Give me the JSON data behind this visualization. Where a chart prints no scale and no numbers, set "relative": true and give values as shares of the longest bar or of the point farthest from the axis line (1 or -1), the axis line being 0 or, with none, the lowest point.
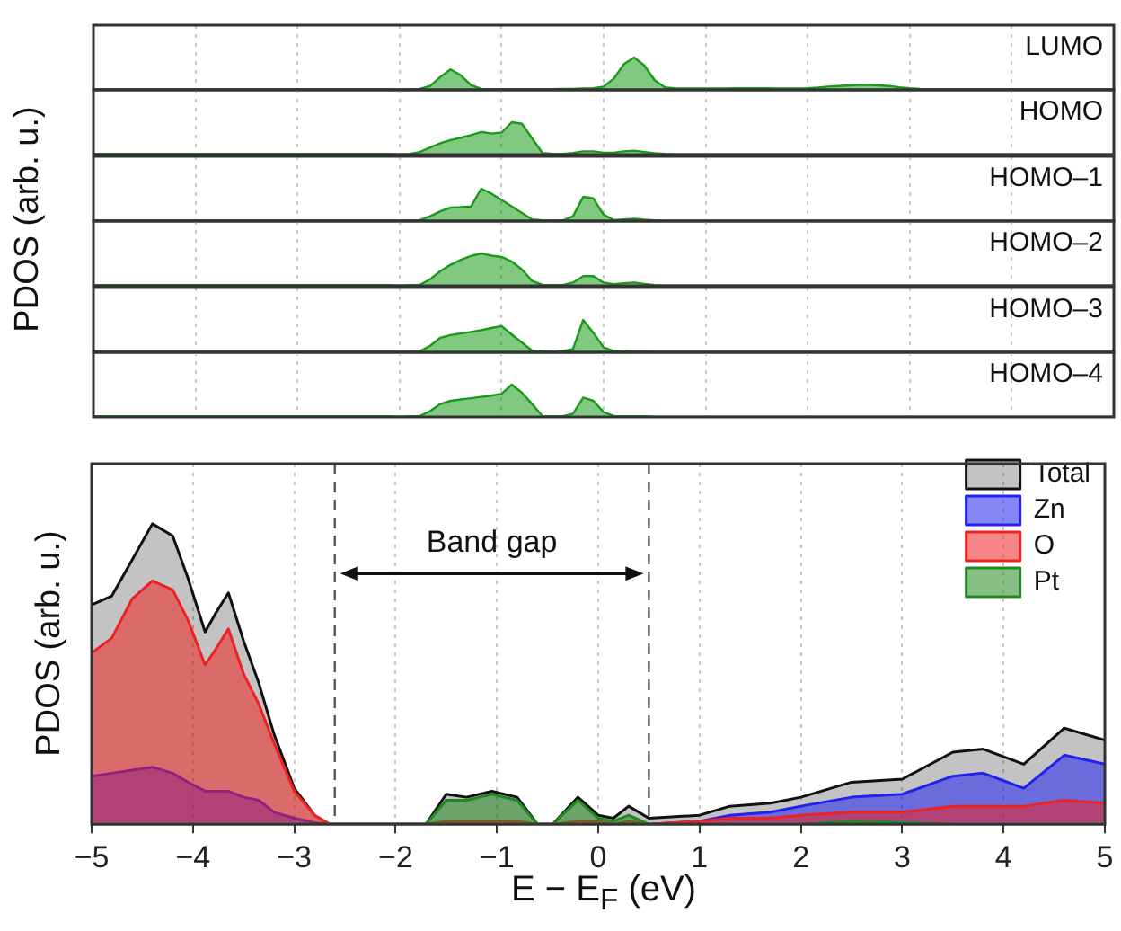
{
  "chart_data": [
    {
      "type": "area",
      "relative": true,
      "ylabel": "PDOS (arb. u.)",
      "categories": [
        null,
        null,
        null,
        null,
        null,
        null,
        null,
        null,
        null,
        null,
        null,
        null,
        null,
        null,
        null,
        null,
        null,
        null,
        null,
        null,
        null,
        null,
        null,
        null,
        null,
        null,
        null,
        null,
        null,
        null,
        null,
        null,
        null,
        null,
        null,
        null,
        null,
        null,
        null,
        null,
        null,
        null,
        null,
        null,
        null,
        null,
        null,
        null,
        null,
        null,
        null,
        null,
        null,
        null,
        null,
        null,
        null,
        null,
        null,
        null,
        null,
        null,
        null,
        null,
        null,
        null,
        null,
        null,
        null,
        null,
        null,
        null,
        null,
        null,
        null,
        null,
        null,
        null,
        null,
        null,
        null,
        null,
        null,
        null,
        null,
        null,
        null,
        null,
        null,
        null,
        null,
        null,
        null,
        null,
        null,
        null,
        null,
        null,
        null,
        null,
        null
      ],
      "grid": "x",
      "tick_labels": false,
      "series": [
        {
          "name": "LUMO",
          "color": "#1a9a1a",
          "values": [
            0.02,
            0.02,
            0.02,
            0.02,
            0.02,
            0.02,
            0.02,
            0.02,
            0.02,
            0.02,
            0.02,
            0.02,
            0.02,
            0.02,
            0.02,
            0.02,
            0.02,
            0.02,
            0.02,
            0.02,
            0.02,
            0.02,
            0.02,
            0.02,
            0.02,
            0.02,
            0.02,
            0.02,
            0.02,
            0.02,
            0.01,
            0.02,
            0.03,
            0.12,
            0.4,
            0.63,
            0.45,
            0.15,
            0.03,
            0.02,
            0.02,
            0.02,
            0.02,
            0.02,
            0.02,
            0.02,
            0.03,
            0.03,
            0.04,
            0.05,
            0.1,
            0.35,
            0.8,
            1,
            0.75,
            0.3,
            0.08,
            0.04,
            0.04,
            0.04,
            0.04,
            0.04,
            0.04,
            0.05,
            0.05,
            0.05,
            0.05,
            0.04,
            0.04,
            0.04,
            0.05,
            0.07,
            0.1,
            0.12,
            0.14,
            0.15,
            0.15,
            0.14,
            0.12,
            0.08,
            0.05,
            0.03,
            0.02,
            0.02,
            0.02,
            0.02,
            0.02,
            0.02,
            0.02,
            0.02,
            0.02,
            0.02,
            0.02,
            0.02,
            0.02,
            0.02,
            0.02,
            0.02,
            0.02,
            0.02,
            0.02
          ]
        }
      ]
    },
    {
      "type": "area",
      "relative": true,
      "categories": [
        null,
        null,
        null,
        null,
        null,
        null,
        null,
        null,
        null,
        null,
        null,
        null,
        null,
        null,
        null,
        null,
        null,
        null,
        null,
        null,
        null,
        null,
        null,
        null,
        null,
        null,
        null,
        null,
        null,
        null,
        null,
        null,
        null,
        null,
        null,
        null,
        null,
        null,
        null,
        null,
        null,
        null,
        null,
        null,
        null,
        null,
        null,
        null,
        null,
        null,
        null,
        null,
        null,
        null,
        null,
        null,
        null,
        null,
        null,
        null,
        null,
        null,
        null,
        null,
        null,
        null,
        null,
        null,
        null,
        null,
        null,
        null,
        null,
        null,
        null,
        null,
        null,
        null,
        null,
        null,
        null,
        null,
        null,
        null,
        null,
        null,
        null,
        null,
        null,
        null,
        null,
        null,
        null,
        null,
        null,
        null,
        null,
        null,
        null,
        null,
        null
      ],
      "grid": "x",
      "tick_labels": false,
      "series": [
        {
          "name": "HOMO",
          "color": "#1a9a1a",
          "values": [
            0.02,
            0.02,
            0.02,
            0.02,
            0.02,
            0.02,
            0.02,
            0.02,
            0.02,
            0.02,
            0.02,
            0.02,
            0.02,
            0.02,
            0.02,
            0.02,
            0.02,
            0.02,
            0.02,
            0.02,
            0.02,
            0.02,
            0.02,
            0.02,
            0.02,
            0.02,
            0.02,
            0.02,
            0.02,
            0.02,
            0.01,
            0.02,
            0.08,
            0.22,
            0.35,
            0.45,
            0.52,
            0.6,
            0.7,
            0.65,
            0.68,
            1,
            0.95,
            0.5,
            0.05,
            0.02,
            0.02,
            0.05,
            0.1,
            0.1,
            0.06,
            0.06,
            0.1,
            0.12,
            0.08,
            0.04,
            0.02,
            0.01,
            0.01,
            0.01,
            0.01,
            0.01,
            0.01,
            0.01,
            0.01,
            0.01,
            0.01,
            0.01,
            0.01,
            0.01,
            0.01,
            0.01,
            0.01,
            0.01,
            0.01,
            0.01,
            0.01,
            0.01,
            0.01,
            0.01,
            0.01,
            0.01,
            0.01,
            0.01,
            0.01,
            0.01,
            0.01,
            0.01,
            0.01,
            0.01,
            0.01,
            0.01,
            0.01,
            0.01,
            0.01,
            0.01,
            0.01,
            0.01,
            0.01,
            0.01,
            0.01
          ]
        }
      ]
    },
    {
      "type": "area",
      "relative": true,
      "categories": [
        null,
        null,
        null,
        null,
        null,
        null,
        null,
        null,
        null,
        null,
        null,
        null,
        null,
        null,
        null,
        null,
        null,
        null,
        null,
        null,
        null,
        null,
        null,
        null,
        null,
        null,
        null,
        null,
        null,
        null,
        null,
        null,
        null,
        null,
        null,
        null,
        null,
        null,
        null,
        null,
        null,
        null,
        null,
        null,
        null,
        null,
        null,
        null,
        null,
        null,
        null,
        null,
        null,
        null,
        null,
        null,
        null,
        null,
        null,
        null,
        null,
        null,
        null,
        null,
        null,
        null,
        null,
        null,
        null,
        null,
        null,
        null,
        null,
        null,
        null,
        null,
        null,
        null,
        null,
        null,
        null,
        null,
        null,
        null,
        null,
        null,
        null,
        null,
        null,
        null,
        null,
        null,
        null,
        null,
        null,
        null,
        null,
        null,
        null,
        null,
        null
      ],
      "grid": "x",
      "tick_labels": false,
      "series": [
        {
          "name": "HOMO–1",
          "color": "#1a9a1a",
          "values": [
            0.02,
            0.02,
            0.02,
            0.02,
            0.02,
            0.02,
            0.02,
            0.02,
            0.02,
            0.02,
            0.02,
            0.02,
            0.02,
            0.02,
            0.02,
            0.02,
            0.02,
            0.02,
            0.02,
            0.02,
            0.02,
            0.02,
            0.02,
            0.02,
            0.02,
            0.02,
            0.02,
            0.02,
            0.02,
            0.02,
            0.01,
            0.02,
            0.03,
            0.15,
            0.3,
            0.42,
            0.43,
            0.45,
            1,
            0.85,
            0.65,
            0.45,
            0.25,
            0.05,
            0.02,
            0.01,
            0.02,
            0.15,
            0.75,
            0.7,
            0.2,
            0.03,
            0.05,
            0.07,
            0.04,
            0.02,
            0.01,
            0.01,
            0.01,
            0.01,
            0.01,
            0.01,
            0.01,
            0.01,
            0.01,
            0.01,
            0.01,
            0.01,
            0.01,
            0.01,
            0.01,
            0.01,
            0.01,
            0.01,
            0.01,
            0.01,
            0.01,
            0.01,
            0.01,
            0.01,
            0.01,
            0.01,
            0.01,
            0.01,
            0.01,
            0.01,
            0.01,
            0.01,
            0.01,
            0.01,
            0.01,
            0.01,
            0.01,
            0.01,
            0.01,
            0.01,
            0.01,
            0.01,
            0.01,
            0.01,
            0.01
          ]
        }
      ]
    },
    {
      "type": "area",
      "relative": true,
      "categories": [
        null,
        null,
        null,
        null,
        null,
        null,
        null,
        null,
        null,
        null,
        null,
        null,
        null,
        null,
        null,
        null,
        null,
        null,
        null,
        null,
        null,
        null,
        null,
        null,
        null,
        null,
        null,
        null,
        null,
        null,
        null,
        null,
        null,
        null,
        null,
        null,
        null,
        null,
        null,
        null,
        null,
        null,
        null,
        null,
        null,
        null,
        null,
        null,
        null,
        null,
        null,
        null,
        null,
        null,
        null,
        null,
        null,
        null,
        null,
        null,
        null,
        null,
        null,
        null,
        null,
        null,
        null,
        null,
        null,
        null,
        null,
        null,
        null,
        null,
        null,
        null,
        null,
        null,
        null,
        null,
        null,
        null,
        null,
        null,
        null,
        null,
        null,
        null,
        null,
        null,
        null,
        null,
        null,
        null,
        null,
        null,
        null,
        null,
        null,
        null,
        null
      ],
      "grid": "x",
      "tick_labels": false,
      "series": [
        {
          "name": "HOMO–2",
          "color": "#1a9a1a",
          "values": [
            0.02,
            0.02,
            0.02,
            0.02,
            0.02,
            0.02,
            0.02,
            0.02,
            0.02,
            0.02,
            0.02,
            0.02,
            0.02,
            0.02,
            0.02,
            0.02,
            0.02,
            0.02,
            0.02,
            0.02,
            0.02,
            0.02,
            0.02,
            0.02,
            0.02,
            0.02,
            0.02,
            0.02,
            0.02,
            0.02,
            0.01,
            0.02,
            0.03,
            0.2,
            0.45,
            0.65,
            0.8,
            0.92,
            1,
            0.93,
            0.89,
            0.75,
            0.5,
            0.15,
            0.03,
            0.02,
            0.02,
            0.1,
            0.3,
            0.3,
            0.1,
            0.05,
            0.08,
            0.1,
            0.06,
            0.02,
            0.01,
            0.01,
            0.01,
            0.01,
            0.01,
            0.01,
            0.01,
            0.01,
            0.01,
            0.01,
            0.01,
            0.01,
            0.01,
            0.01,
            0.01,
            0.01,
            0.01,
            0.01,
            0.01,
            0.01,
            0.01,
            0.01,
            0.01,
            0.01,
            0.01,
            0.01,
            0.01,
            0.01,
            0.01,
            0.01,
            0.01,
            0.01,
            0.01,
            0.01,
            0.01,
            0.01,
            0.01,
            0.01,
            0.01,
            0.01,
            0.01,
            0.01,
            0.01,
            0.01,
            0.01
          ]
        }
      ]
    },
    {
      "type": "area",
      "relative": true,
      "categories": [
        null,
        null,
        null,
        null,
        null,
        null,
        null,
        null,
        null,
        null,
        null,
        null,
        null,
        null,
        null,
        null,
        null,
        null,
        null,
        null,
        null,
        null,
        null,
        null,
        null,
        null,
        null,
        null,
        null,
        null,
        null,
        null,
        null,
        null,
        null,
        null,
        null,
        null,
        null,
        null,
        null,
        null,
        null,
        null,
        null,
        null,
        null,
        null,
        null,
        null,
        null,
        null,
        null,
        null,
        null,
        null,
        null,
        null,
        null,
        null,
        null,
        null,
        null,
        null,
        null,
        null,
        null,
        null,
        null,
        null,
        null,
        null,
        null,
        null,
        null,
        null,
        null,
        null,
        null,
        null,
        null,
        null,
        null,
        null,
        null,
        null,
        null,
        null,
        null,
        null,
        null,
        null,
        null,
        null,
        null,
        null,
        null,
        null,
        null,
        null,
        null
      ],
      "grid": "x",
      "tick_labels": false,
      "series": [
        {
          "name": "HOMO–3",
          "color": "#1a9a1a",
          "values": [
            0.02,
            0.02,
            0.02,
            0.02,
            0.02,
            0.02,
            0.02,
            0.02,
            0.02,
            0.02,
            0.02,
            0.02,
            0.02,
            0.02,
            0.02,
            0.02,
            0.02,
            0.02,
            0.02,
            0.02,
            0.02,
            0.02,
            0.02,
            0.02,
            0.02,
            0.02,
            0.02,
            0.02,
            0.02,
            0.02,
            0.01,
            0.02,
            0.03,
            0.2,
            0.45,
            0.53,
            0.58,
            0.63,
            0.68,
            0.75,
            0.81,
            0.55,
            0.3,
            0.05,
            0.02,
            0.02,
            0.04,
            0.1,
            1,
            0.6,
            0.15,
            0.04,
            0.03,
            0.02,
            0.02,
            0.01,
            0.01,
            0.01,
            0.01,
            0.01,
            0.01,
            0.01,
            0.01,
            0.01,
            0.01,
            0.01,
            0.01,
            0.01,
            0.01,
            0.01,
            0.01,
            0.01,
            0.01,
            0.01,
            0.01,
            0.01,
            0.01,
            0.01,
            0.01,
            0.01,
            0.01,
            0.01,
            0.01,
            0.01,
            0.01,
            0.01,
            0.01,
            0.01,
            0.01,
            0.01,
            0.01,
            0.01,
            0.01,
            0.01,
            0.01,
            0.01,
            0.01,
            0.01,
            0.01,
            0.01,
            0.01
          ]
        }
      ]
    },
    {
      "type": "area",
      "relative": true,
      "categories": [
        null,
        null,
        null,
        null,
        null,
        null,
        null,
        null,
        null,
        null,
        null,
        null,
        null,
        null,
        null,
        null,
        null,
        null,
        null,
        null,
        null,
        null,
        null,
        null,
        null,
        null,
        null,
        null,
        null,
        null,
        null,
        null,
        null,
        null,
        null,
        null,
        null,
        null,
        null,
        null,
        null,
        null,
        null,
        null,
        null,
        null,
        null,
        null,
        null,
        null,
        null,
        null,
        null,
        null,
        null,
        null,
        null,
        null,
        null,
        null,
        null,
        null,
        null,
        null,
        null,
        null,
        null,
        null,
        null,
        null,
        null,
        null,
        null,
        null,
        null,
        null,
        null,
        null,
        null,
        null,
        null,
        null,
        null,
        null,
        null,
        null,
        null,
        null,
        null,
        null,
        null,
        null,
        null,
        null,
        null,
        null,
        null,
        null,
        null,
        null,
        null
      ],
      "grid": "x",
      "tick_labels": false,
      "series": [
        {
          "name": "HOMO–4",
          "color": "#1a9a1a",
          "values": [
            0.02,
            0.02,
            0.02,
            0.02,
            0.02,
            0.02,
            0.02,
            0.02,
            0.02,
            0.02,
            0.02,
            0.02,
            0.02,
            0.02,
            0.02,
            0.02,
            0.02,
            0.02,
            0.02,
            0.02,
            0.02,
            0.02,
            0.02,
            0.02,
            0.02,
            0.02,
            0.02,
            0.02,
            0.02,
            0.02,
            0.01,
            0.02,
            0.03,
            0.18,
            0.4,
            0.5,
            0.54,
            0.58,
            0.62,
            0.66,
            0.72,
            1,
            0.75,
            0.4,
            0.03,
            0.02,
            0.02,
            0.1,
            0.6,
            0.5,
            0.15,
            0.03,
            0.02,
            0.02,
            0.02,
            0.01,
            0.01,
            0.01,
            0.01,
            0.01,
            0.01,
            0.01,
            0.01,
            0.01,
            0.01,
            0.01,
            0.01,
            0.01,
            0.01,
            0.01,
            0.01,
            0.01,
            0.01,
            0.01,
            0.01,
            0.01,
            0.01,
            0.01,
            0.01,
            0.01,
            0.01,
            0.01,
            0.01,
            0.01,
            0.01,
            0.01,
            0.01,
            0.01,
            0.01,
            0.01,
            0.01,
            0.01,
            0.01,
            0.01,
            0.01,
            0.01,
            0.01,
            0.01,
            0.01,
            0.01,
            0.01
          ]
        }
      ]
    },
    {
      "type": "area",
      "relative": true,
      "xlabel": "E − E$_{F}$ (eV)",
      "ylabel": "PDOS (arb. u.)",
      "xlim": [
        -5,
        5
      ],
      "xticks": [
        -5,
        -4,
        -3,
        -2,
        -1,
        0,
        1,
        2,
        3,
        4,
        5
      ],
      "grid": "x",
      "legend": "top right",
      "ref_lines": [
        {
          "axis": "x",
          "value": -2.6,
          "line_style": "dashed"
        },
        {
          "axis": "x",
          "value": 0.5,
          "line_style": "dashed"
        }
      ],
      "annotations": [
        "Band gap"
      ],
      "x": [
        -5,
        -4.8,
        -4.6,
        -4.4,
        -4.2,
        -4.05,
        -3.88,
        -3.78,
        -3.65,
        -3.5,
        -3.35,
        -3.2,
        -3,
        -2.8,
        -2.65,
        -1.7,
        -1.5,
        -1.3,
        -1.05,
        -0.8,
        -0.6,
        -0.45,
        -0.2,
        0,
        0.15,
        0.3,
        0.5,
        1,
        1.3,
        1.7,
        2,
        2.5,
        3,
        3.5,
        3.8,
        4.2,
        4.6,
        5
      ],
      "series": [
        {
          "name": "Total",
          "color": "#111111",
          "values": [
            0.73,
            0.76,
            0.88,
            1,
            0.96,
            0.82,
            0.64,
            0.7,
            0.77,
            0.61,
            0.47,
            0.3,
            0.12,
            0.03,
            0,
            0,
            0.1,
            0.09,
            0.11,
            0.09,
            0,
            0,
            0.09,
            0.03,
            0.02,
            0.06,
            0.02,
            0.03,
            0.06,
            0.07,
            0.09,
            0.14,
            0.15,
            0.24,
            0.25,
            0.2,
            0.32,
            0.28
          ]
        },
        {
          "name": "Zn",
          "color": "#2222ee",
          "values": [
            0.16,
            0.17,
            0.18,
            0.19,
            0.17,
            0.14,
            0.11,
            0.11,
            0.11,
            0.09,
            0.08,
            0.04,
            0.02,
            0.005,
            0,
            0,
            0,
            0,
            0,
            0,
            0,
            0,
            0,
            0,
            0,
            0,
            0,
            0.01,
            0.03,
            0.04,
            0.06,
            0.09,
            0.1,
            0.16,
            0.17,
            0.12,
            0.23,
            0.2
          ]
        },
        {
          "name": "O",
          "color": "#ee2222",
          "values": [
            0.57,
            0.62,
            0.75,
            0.81,
            0.78,
            0.68,
            0.53,
            0.58,
            0.65,
            0.5,
            0.4,
            0.27,
            0.11,
            0.03,
            0,
            0,
            0.01,
            0.01,
            0.01,
            0.01,
            0,
            0,
            0.01,
            0.01,
            0,
            0.01,
            0,
            0.01,
            0.02,
            0.02,
            0.03,
            0.04,
            0.04,
            0.06,
            0.06,
            0.06,
            0.08,
            0.07
          ]
        },
        {
          "name": "Pt",
          "color": "#228822",
          "values": [
            0,
            0,
            0,
            0,
            0,
            0,
            0,
            0,
            0,
            0,
            0,
            0,
            0,
            0,
            0,
            0,
            0.08,
            0.08,
            0.1,
            0.08,
            0,
            0,
            0.08,
            0.02,
            0.01,
            0.03,
            0,
            0,
            0,
            0,
            0,
            0.01,
            0.005,
            0,
            0,
            0,
            0,
            0
          ]
        }
      ]
    }
  ]
}
